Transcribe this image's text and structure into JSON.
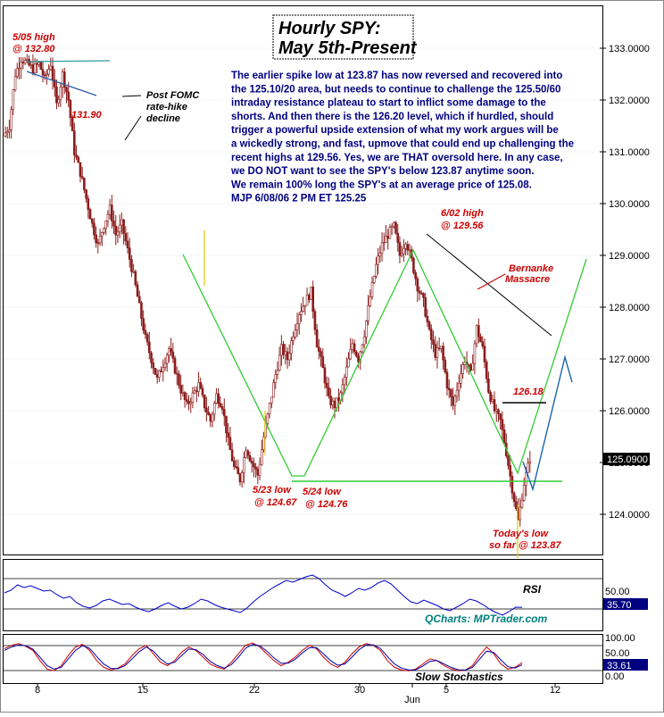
{
  "title": {
    "line1": "Hourly SPY:",
    "line2": "May 5th-Present"
  },
  "commentary": [
    "The earlier spike low at 123.87 has now reversed and recovered into",
    "the 125.10/20 area, but needs to continue to challenge the 125.50/60",
    "intraday resistance plateau to start to inflict some damage to the",
    "shorts. And then there is the 126.20 level, which if hurdled, should",
    "trigger a powerful upside extension of what my work argues will be",
    "a wickedly strong, and fast, upmove that could end up challenging the",
    "recent highs at 129.56. Yes, we are THAT oversold here. In any case,",
    "we DO NOT want to see the SPY's below 123.87 anytime soon.",
    "We remain 100% long the SPY's at an average price of 125.08.",
    "MJP  6/08/06 2 PM ET 125.25"
  ],
  "annotations": {
    "may5_high_a": "5/05 high",
    "may5_high_b": "@ 132.80",
    "low_1319": "131.90",
    "fomc_a": "Post FOMC",
    "fomc_b": "rate-hike",
    "fomc_c": "decline",
    "jun2_high_a": "6/02 high",
    "jun2_high_b": "@ 129.56",
    "bernanke_a": "Bernanke",
    "bernanke_b": "Massacre",
    "level_126": "126.18",
    "may23_a": "5/23 low",
    "may23_b": "@ 124.67",
    "may24_a": "5/24 low",
    "may24_b": "@ 124.76",
    "today_a": "Today's low",
    "today_b": "so far @ 123.87"
  },
  "rsi": {
    "label": "RSI",
    "level_top": "50.00",
    "value": "35.70",
    "credit": "QCharts: MPTrader.com"
  },
  "stoch": {
    "label": "Slow Stochastics",
    "lvl100": "100.00",
    "lvl50": "50.00",
    "lvl0": "0.00",
    "value": "33.61"
  },
  "colors": {
    "candle": "#8b1c1c",
    "annotation": "#cc0000",
    "text": "#000080",
    "green": "#33cc33",
    "blue": "#1a66aa",
    "last_price_box": "#000000",
    "rsi_line": "#0000cc",
    "stoch_k": "#cc0000",
    "stoch_d": "#0000aa",
    "credit": "#008080"
  },
  "chart_data": {
    "type": "candlestick",
    "title": "Hourly SPY: May 5th-Present",
    "y_ticks": [
      "133.0000",
      "132.0000",
      "131.0000",
      "130.0000",
      "129.0000",
      "128.0000",
      "127.0000",
      "126.0000",
      "125.0000",
      "124.0000"
    ],
    "ylim": [
      123.4,
      133.5
    ],
    "x_ticks": [
      "8",
      "15",
      "22",
      "30",
      "Jun",
      "5",
      "12"
    ],
    "last_price": "125.0900",
    "key_levels": {
      "may5_high": 132.8,
      "low_131_90": 131.9,
      "jun2_high": 129.56,
      "may23_low": 124.67,
      "may24_low": 124.76,
      "resistance_126_18": 126.18,
      "today_low": 123.87
    },
    "price_path": [
      [
        0,
        131.3
      ],
      [
        1,
        131.5
      ],
      [
        2,
        132.5
      ],
      [
        3,
        132.8
      ],
      [
        4,
        132.7
      ],
      [
        5,
        132.6
      ],
      [
        6,
        132.7
      ],
      [
        7,
        132.4
      ],
      [
        8,
        132.7
      ],
      [
        9,
        131.9
      ],
      [
        10,
        132.5
      ],
      [
        11,
        132.0
      ],
      [
        12,
        131.0
      ],
      [
        13,
        130.6
      ],
      [
        14,
        130.1
      ],
      [
        15,
        129.6
      ],
      [
        16,
        129.2
      ],
      [
        17,
        129.6
      ],
      [
        18,
        129.9
      ],
      [
        19,
        129.4
      ],
      [
        20,
        129.6
      ],
      [
        21,
        129.1
      ],
      [
        22,
        128.6
      ],
      [
        23,
        128.0
      ],
      [
        24,
        127.4
      ],
      [
        25,
        127.0
      ],
      [
        26,
        126.6
      ],
      [
        27,
        126.9
      ],
      [
        28,
        127.2
      ],
      [
        29,
        126.8
      ],
      [
        30,
        126.4
      ],
      [
        31,
        126.1
      ],
      [
        32,
        126.3
      ],
      [
        33,
        126.5
      ],
      [
        34,
        126.1
      ],
      [
        35,
        125.8
      ],
      [
        36,
        126.3
      ],
      [
        37,
        126.1
      ],
      [
        38,
        125.4
      ],
      [
        39,
        124.9
      ],
      [
        40,
        124.67
      ],
      [
        41,
        125.3
      ],
      [
        42,
        125.0
      ],
      [
        43,
        124.76
      ],
      [
        44,
        125.5
      ],
      [
        45,
        126.1
      ],
      [
        46,
        126.7
      ],
      [
        47,
        127.2
      ],
      [
        48,
        127.0
      ],
      [
        49,
        127.5
      ],
      [
        50,
        127.9
      ],
      [
        51,
        128.1
      ],
      [
        52,
        128.3
      ],
      [
        53,
        127.3
      ],
      [
        54,
        126.8
      ],
      [
        55,
        126.2
      ],
      [
        56,
        126.1
      ],
      [
        57,
        126.3
      ],
      [
        58,
        126.8
      ],
      [
        59,
        127.3
      ],
      [
        60,
        127.0
      ],
      [
        61,
        127.5
      ],
      [
        62,
        128.2
      ],
      [
        63,
        128.8
      ],
      [
        64,
        129.2
      ],
      [
        65,
        129.4
      ],
      [
        66,
        129.56
      ],
      [
        67,
        129.0
      ],
      [
        68,
        129.3
      ],
      [
        69,
        128.9
      ],
      [
        70,
        128.4
      ],
      [
        71,
        128.1
      ],
      [
        72,
        127.5
      ],
      [
        73,
        127.1
      ],
      [
        74,
        127.2
      ],
      [
        75,
        126.5
      ],
      [
        76,
        126.1
      ],
      [
        77,
        126.6
      ],
      [
        78,
        127.0
      ],
      [
        79,
        126.7
      ],
      [
        80,
        127.6
      ],
      [
        81,
        127.2
      ],
      [
        82,
        126.4
      ],
      [
        83,
        126.0
      ],
      [
        84,
        125.8
      ],
      [
        85,
        125.2
      ],
      [
        86,
        124.5
      ],
      [
        87,
        123.87
      ],
      [
        88,
        124.6
      ],
      [
        89,
        125.09
      ]
    ],
    "rsi": [
      52,
      55,
      61,
      58,
      60,
      57,
      54,
      55,
      50,
      46,
      48,
      41,
      37,
      35,
      38,
      43,
      45,
      42,
      39,
      40,
      36,
      33,
      31,
      34,
      38,
      41,
      37,
      34,
      36,
      40,
      45,
      43,
      39,
      36,
      34,
      32,
      30,
      35,
      42,
      48,
      53,
      58,
      62,
      66,
      64,
      67,
      70,
      72,
      68,
      61,
      55,
      52,
      48,
      52,
      57,
      55,
      58,
      63,
      66,
      62,
      55,
      48,
      42,
      40,
      44,
      41,
      38,
      34,
      32,
      36,
      40,
      45,
      43,
      39,
      34,
      30,
      27,
      31,
      36,
      35.7
    ],
    "stoch_k": [
      75,
      85,
      90,
      82,
      70,
      40,
      15,
      10,
      25,
      55,
      80,
      88,
      70,
      40,
      20,
      12,
      18,
      30,
      55,
      75,
      85,
      60,
      35,
      25,
      40,
      65,
      80,
      70,
      50,
      30,
      20,
      15,
      35,
      60,
      85,
      92,
      80,
      60,
      40,
      25,
      35,
      50,
      70,
      85,
      75,
      50,
      30,
      20,
      35,
      60,
      80,
      90,
      85,
      70,
      40,
      20,
      12,
      10,
      15,
      30,
      45,
      40,
      25,
      15,
      10,
      12,
      25,
      55,
      80,
      60,
      30,
      15,
      20,
      33.61
    ],
    "stoch_d": [
      70,
      80,
      86,
      84,
      74,
      50,
      25,
      15,
      20,
      45,
      70,
      84,
      76,
      52,
      30,
      17,
      16,
      25,
      45,
      66,
      80,
      68,
      45,
      30,
      35,
      55,
      74,
      72,
      58,
      38,
      25,
      18,
      28,
      50,
      76,
      88,
      84,
      68,
      48,
      32,
      32,
      44,
      62,
      78,
      78,
      60,
      40,
      26,
      30,
      50,
      72,
      86,
      86,
      76,
      52,
      30,
      18,
      12,
      13,
      24,
      38,
      40,
      30,
      20,
      13,
      12,
      20,
      44,
      68,
      64,
      42,
      22,
      18,
      28
    ]
  }
}
